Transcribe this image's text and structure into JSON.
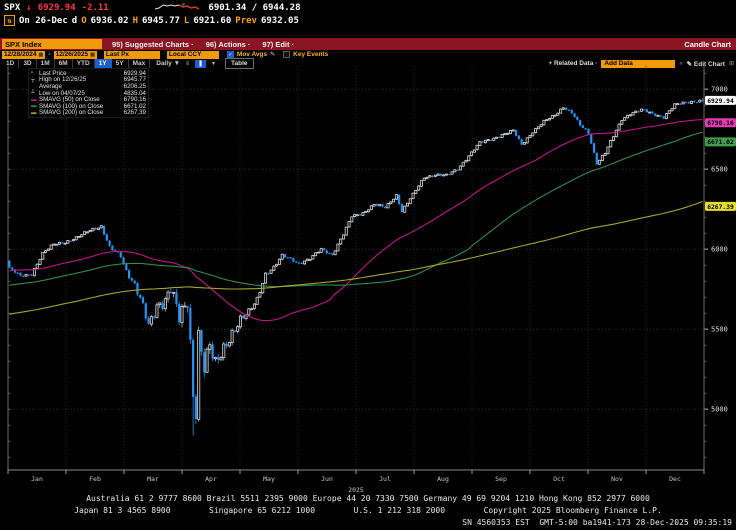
{
  "quote": {
    "ticker": "SPX",
    "arrow": "↓",
    "last": "6929.94",
    "change": "-2.11",
    "bid_ask": "6901.34 / 6944.28",
    "session": "On 26-Dec",
    "freq": "d",
    "open_label": "O",
    "open": "6936.02",
    "high_label": "H",
    "high": "6945.77",
    "low_label": "L",
    "low": "6921.60",
    "prev_label": "Prev",
    "prev": "6932.05",
    "mkt_icon": "⇅"
  },
  "titlebar": {
    "security": "SPX Index",
    "menus": [
      "95) Suggested Charts ·",
      "96) Actions ·",
      "97) Edit ·"
    ],
    "chart_type": "Candle Chart"
  },
  "controls": {
    "date_from": "12/28/2024",
    "date_to": "12/26/2025",
    "price_field": "Last Px",
    "currency": "Local CCY",
    "mov_avgs": {
      "label": "Mov Avgs",
      "checked": true
    },
    "key_events": {
      "label": "Key Events",
      "checked": false
    },
    "tabs": [
      "1D",
      "3D",
      "1M",
      "6M",
      "YTD",
      "1Y",
      "5Y",
      "Max"
    ],
    "active_tab": "1Y",
    "frequency": "Daily ▼",
    "table_label": "Table",
    "related_data_label": "+ Related Data ·",
    "add_data_value": "Add Data",
    "edit_chart_label": "✎ Edit Chart"
  },
  "legend": {
    "rows": [
      {
        "marker": "▫",
        "color": "#ffffff",
        "label": "Last Price",
        "value": "6929.94"
      },
      {
        "marker": "┬",
        "color": "#ffffff",
        "label": "High on 12/26/25",
        "value": "6945.77"
      },
      {
        "marker": "",
        "color": "#ffffff",
        "label": "Average",
        "value": "6206.25"
      },
      {
        "marker": "┴",
        "color": "#ffffff",
        "label": "Low on 04/07/25",
        "value": "4835.04"
      },
      {
        "marker": "▬",
        "color": "#c0148c",
        "label": "SMAVG (50)  on Close",
        "value": "6790.16"
      },
      {
        "marker": "▬",
        "color": "#2d8c50",
        "label": "SMAVG (100) on Close",
        "value": "6671.02"
      },
      {
        "marker": "▬",
        "color": "#a8a427",
        "label": "SMAVG (200) on Close",
        "value": "6267.39"
      }
    ]
  },
  "chart_data": {
    "type": "candlestick",
    "title": "SPX Index 1Y daily candle chart",
    "x_months": [
      "Jan",
      "Feb",
      "Mar",
      "Apr",
      "May",
      "Jun",
      "Jul",
      "Aug",
      "Sep",
      "Oct",
      "Nov",
      "Dec"
    ],
    "year": "2025",
    "y_ticks": [
      7000,
      6500,
      6000,
      5500,
      5000
    ],
    "y_axis": {
      "min": 4620,
      "max": 7145
    },
    "days": 250,
    "up_color": "#d9d9d9",
    "down_color": "#2493f7",
    "grid_color": "#2d2d2d",
    "anchors": [
      [
        0,
        5882
      ],
      [
        4,
        5830
      ],
      [
        8,
        5845
      ],
      [
        12,
        5975
      ],
      [
        16,
        6030
      ],
      [
        20,
        6045
      ],
      [
        24,
        6071
      ],
      [
        29,
        6118
      ],
      [
        33,
        6144
      ],
      [
        36,
        6013
      ],
      [
        40,
        5955
      ],
      [
        42,
        5861
      ],
      [
        45,
        5778
      ],
      [
        48,
        5650
      ],
      [
        50,
        5521
      ],
      [
        53,
        5638
      ],
      [
        56,
        5675
      ],
      [
        58,
        5767
      ],
      [
        61,
        5581
      ],
      [
        63,
        5633
      ],
      [
        64,
        5671
      ],
      [
        65,
        5397
      ],
      [
        66,
        5075
      ],
      [
        67,
        4983
      ],
      [
        68,
        5457
      ],
      [
        70,
        5268
      ],
      [
        72,
        5406
      ],
      [
        74,
        5283
      ],
      [
        77,
        5376
      ],
      [
        80,
        5469
      ],
      [
        83,
        5561
      ],
      [
        86,
        5607
      ],
      [
        89,
        5687
      ],
      [
        92,
        5845
      ],
      [
        95,
        5886
      ],
      [
        98,
        5958
      ],
      [
        101,
        5940
      ],
      [
        104,
        5912
      ],
      [
        108,
        5940
      ],
      [
        112,
        6000
      ],
      [
        116,
        5967
      ],
      [
        120,
        6092
      ],
      [
        123,
        6205
      ],
      [
        127,
        6227
      ],
      [
        131,
        6280
      ],
      [
        135,
        6259
      ],
      [
        139,
        6339
      ],
      [
        141,
        6238
      ],
      [
        145,
        6340
      ],
      [
        149,
        6450
      ],
      [
        153,
        6466
      ],
      [
        157,
        6460
      ],
      [
        161,
        6502
      ],
      [
        165,
        6584
      ],
      [
        169,
        6664
      ],
      [
        173,
        6688
      ],
      [
        177,
        6715
      ],
      [
        181,
        6740
      ],
      [
        184,
        6654
      ],
      [
        188,
        6735
      ],
      [
        192,
        6796
      ],
      [
        196,
        6840
      ],
      [
        199,
        6890
      ],
      [
        202,
        6852
      ],
      [
        205,
        6772
      ],
      [
        208,
        6728
      ],
      [
        211,
        6538
      ],
      [
        214,
        6602
      ],
      [
        217,
        6705
      ],
      [
        220,
        6812
      ],
      [
        223,
        6849
      ],
      [
        227,
        6870
      ],
      [
        231,
        6846
      ],
      [
        235,
        6827
      ],
      [
        239,
        6901
      ],
      [
        243,
        6917
      ],
      [
        246,
        6925
      ],
      [
        249,
        6930
      ]
    ],
    "extremes": {
      "low_day": 66,
      "low": 4835.04,
      "high_day": 249,
      "high": 6945.77
    },
    "smavg": [
      {
        "window": 50,
        "color": "#c0148c",
        "last": 6790.16
      },
      {
        "window": 100,
        "color": "#2d8c50",
        "last": 6671.02
      },
      {
        "window": 200,
        "color": "#a8a427",
        "last": 6267.39
      }
    ],
    "smavg_seed": {
      "days": 200,
      "start": 5230,
      "end": 5950
    },
    "badges": [
      {
        "value": 6929.94,
        "text": "6929.94",
        "bg": "#ffffff"
      },
      {
        "value": 6790.16,
        "text": "6790.16",
        "bg": "#e03ab4"
      },
      {
        "value": 6671.02,
        "text": "6671.02",
        "bg": "#3f9e4f"
      },
      {
        "value": 6267.39,
        "text": "6267.39",
        "bg": "#e6df2e"
      }
    ]
  },
  "footer": {
    "line1": "Australia 61 2 9777 8600 Brazil 5511 2395 9000 Europe 44 20 7330 7500 Germany 49 69 9204 1210 Hong Kong 852 2977 6000",
    "line2": "Japan 81 3 4565 8900        Singapore 65 6212 1000        U.S. 1 212 318 2000        Copyright 2025 Bloomberg Finance L.P.",
    "line3": "SN 4560353 EST  GMT-5:00 ba1941-173 28-Dec-2025 09:35:19"
  }
}
